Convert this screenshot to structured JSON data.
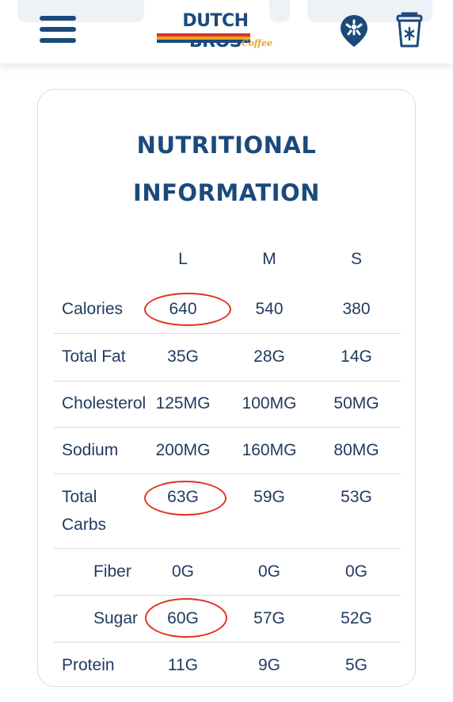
{
  "header": {
    "logo_text": "DUTCH BROS",
    "logo_subtext": "Coffee",
    "menu_icon": "hamburger-menu-icon",
    "location_icon": "location-pin-icon",
    "cart_icon": "cup-cart-icon"
  },
  "nutrition": {
    "title_line1": "NUTRITIONAL",
    "title_line2": "INFORMATION",
    "sizes": [
      "L",
      "M",
      "S"
    ],
    "rows": [
      {
        "label": "Calories",
        "values": [
          "640",
          "540",
          "380"
        ]
      },
      {
        "label": "Total Fat",
        "values": [
          "35G",
          "28G",
          "14G"
        ]
      },
      {
        "label": "Cholesterol",
        "values": [
          "125MG",
          "100MG",
          "50MG"
        ]
      },
      {
        "label": "Sodium",
        "values": [
          "200MG",
          "160MG",
          "80MG"
        ]
      },
      {
        "label": "Total Carbs",
        "values": [
          "63G",
          "59G",
          "53G"
        ]
      },
      {
        "label": "Fiber",
        "values": [
          "0G",
          "0G",
          "0G"
        ]
      },
      {
        "label": "Sugar",
        "values": [
          "60G",
          "57G",
          "52G"
        ]
      },
      {
        "label": "Protein",
        "values": [
          "11G",
          "9G",
          "5G"
        ]
      }
    ]
  },
  "colors": {
    "brand_blue": "#1b4a7a",
    "text": "#1f3a5f",
    "highlight_red": "#e0331f",
    "stripe_red": "#d9352b",
    "stripe_yellow": "#e7a427"
  }
}
